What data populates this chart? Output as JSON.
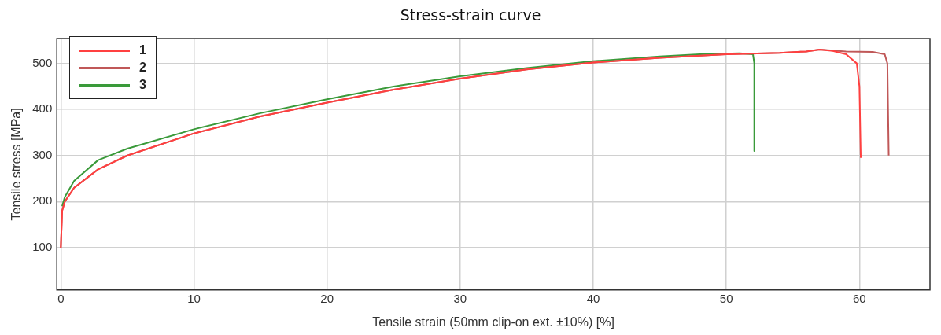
{
  "chart_data": {
    "type": "line",
    "title": "Stress-strain curve",
    "xlabel": "Tensile strain (50mm clip-on ext. ±10%) [%]",
    "ylabel": "Tensile stress [MPa]",
    "xlim": [
      -0.3,
      65.3
    ],
    "xticks": [
      0,
      10,
      20,
      30,
      40,
      50,
      60
    ],
    "ylim": [
      8,
      554
    ],
    "yticks": [
      100,
      200,
      300,
      400,
      500
    ],
    "grid": true,
    "legend": "top left",
    "marker": "none",
    "line_style": "solid",
    "series": [
      {
        "name": "1",
        "color": "#ff4040",
        "x": [
          0,
          0.1,
          0.3,
          1,
          2.8,
          5,
          10,
          15,
          20,
          25,
          30,
          35,
          40,
          45,
          50,
          54,
          56,
          57,
          58,
          59,
          59.8,
          60,
          60.1
        ],
        "values": [
          100,
          180,
          200,
          230,
          270,
          300,
          348,
          385,
          415,
          443,
          467,
          487,
          502,
          512,
          520,
          523,
          526,
          530,
          527,
          520,
          500,
          450,
          295
        ]
      },
      {
        "name": "2",
        "color": "#c05858",
        "x": [
          0,
          0.1,
          0.3,
          1,
          2.8,
          5,
          10,
          15,
          20,
          25,
          30,
          35,
          40,
          45,
          50,
          54,
          56,
          57,
          59,
          61,
          61.9,
          62.1,
          62.2
        ],
        "values": [
          100,
          180,
          200,
          230,
          270,
          300,
          348,
          385,
          415,
          443,
          467,
          487,
          502,
          512,
          520,
          523,
          526,
          530,
          526,
          525,
          520,
          500,
          300
        ]
      },
      {
        "name": "3",
        "color": "#3a9a3a",
        "x": [
          0.1,
          0.3,
          1,
          2.8,
          5,
          10,
          15,
          20,
          25,
          30,
          35,
          40,
          45,
          48,
          51,
          52,
          52.1,
          52.1
        ],
        "values": [
          190,
          210,
          245,
          290,
          315,
          357,
          392,
          422,
          450,
          472,
          490,
          505,
          515,
          520,
          522,
          520,
          500,
          310
        ]
      }
    ]
  }
}
